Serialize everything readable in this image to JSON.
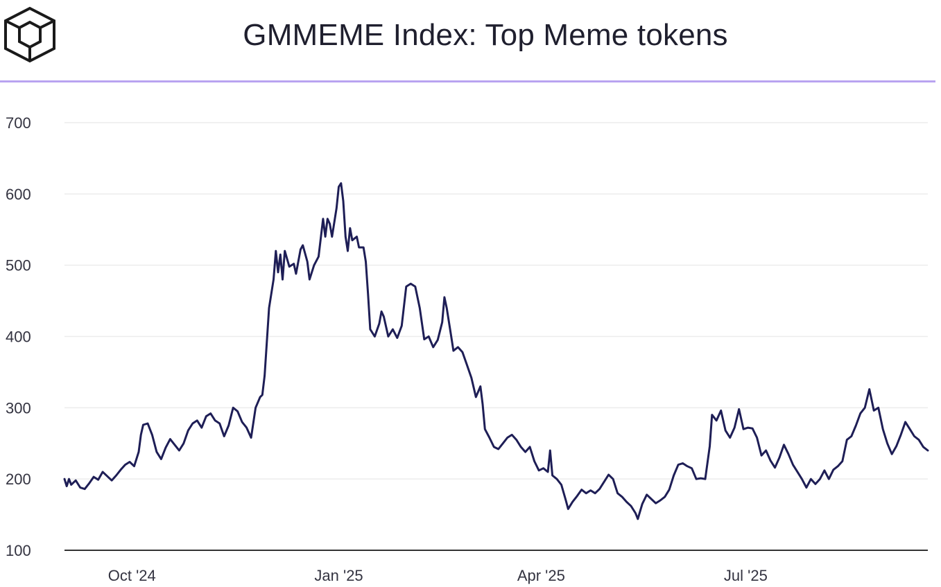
{
  "header": {
    "title": "GMMEME Index: Top Meme tokens",
    "logo_icon": "cube-logo-icon"
  },
  "colors": {
    "line": "#1e1e56",
    "grid": "#ececec",
    "axis": "#333333",
    "divider": "#b9a3f0",
    "text": "#1f1f2e"
  },
  "chart_data": {
    "type": "line",
    "title": "GMMEME Index: Top Meme tokens",
    "xlabel": "",
    "ylabel": "",
    "ylim": [
      100,
      700
    ],
    "yticks": [
      100,
      200,
      300,
      400,
      500,
      600,
      700
    ],
    "xlim": [
      "2024-09-01",
      "2025-09-20"
    ],
    "xticks": [
      {
        "label": "Oct '24",
        "date": "2024-10-01"
      },
      {
        "label": "Jan '25",
        "date": "2025-01-01"
      },
      {
        "label": "Apr '25",
        "date": "2025-04-01"
      },
      {
        "label": "Jul '25",
        "date": "2025-07-01"
      }
    ],
    "grid": true,
    "series": [
      {
        "points": [
          [
            "2024-09-01",
            200
          ],
          [
            "2024-09-02",
            190
          ],
          [
            "2024-09-03",
            200
          ],
          [
            "2024-09-04",
            192
          ],
          [
            "2024-09-06",
            198
          ],
          [
            "2024-09-08",
            188
          ],
          [
            "2024-09-10",
            186
          ],
          [
            "2024-09-12",
            194
          ],
          [
            "2024-09-14",
            203
          ],
          [
            "2024-09-16",
            199
          ],
          [
            "2024-09-18",
            210
          ],
          [
            "2024-09-20",
            204
          ],
          [
            "2024-09-22",
            198
          ],
          [
            "2024-09-24",
            205
          ],
          [
            "2024-09-26",
            213
          ],
          [
            "2024-09-28",
            220
          ],
          [
            "2024-09-30",
            224
          ],
          [
            "2024-10-02",
            218
          ],
          [
            "2024-10-04",
            238
          ],
          [
            "2024-10-05",
            262
          ],
          [
            "2024-10-06",
            276
          ],
          [
            "2024-10-08",
            278
          ],
          [
            "2024-10-10",
            262
          ],
          [
            "2024-10-12",
            238
          ],
          [
            "2024-10-14",
            228
          ],
          [
            "2024-10-16",
            244
          ],
          [
            "2024-10-18",
            256
          ],
          [
            "2024-10-20",
            248
          ],
          [
            "2024-10-22",
            240
          ],
          [
            "2024-10-24",
            250
          ],
          [
            "2024-10-26",
            268
          ],
          [
            "2024-10-28",
            278
          ],
          [
            "2024-10-30",
            282
          ],
          [
            "2024-11-01",
            272
          ],
          [
            "2024-11-03",
            288
          ],
          [
            "2024-11-05",
            292
          ],
          [
            "2024-11-07",
            282
          ],
          [
            "2024-11-09",
            278
          ],
          [
            "2024-11-11",
            260
          ],
          [
            "2024-11-13",
            275
          ],
          [
            "2024-11-15",
            300
          ],
          [
            "2024-11-17",
            295
          ],
          [
            "2024-11-19",
            280
          ],
          [
            "2024-11-21",
            272
          ],
          [
            "2024-11-23",
            258
          ],
          [
            "2024-11-25",
            300
          ],
          [
            "2024-11-27",
            315
          ],
          [
            "2024-11-28",
            318
          ],
          [
            "2024-11-29",
            345
          ],
          [
            "2024-12-01",
            440
          ],
          [
            "2024-12-03",
            480
          ],
          [
            "2024-12-04",
            520
          ],
          [
            "2024-12-05",
            490
          ],
          [
            "2024-12-06",
            515
          ],
          [
            "2024-12-07",
            480
          ],
          [
            "2024-12-08",
            520
          ],
          [
            "2024-12-10",
            498
          ],
          [
            "2024-12-12",
            502
          ],
          [
            "2024-12-13",
            488
          ],
          [
            "2024-12-15",
            522
          ],
          [
            "2024-12-16",
            528
          ],
          [
            "2024-12-18",
            505
          ],
          [
            "2024-12-19",
            480
          ],
          [
            "2024-12-21",
            500
          ],
          [
            "2024-12-23",
            512
          ],
          [
            "2024-12-25",
            565
          ],
          [
            "2024-12-26",
            540
          ],
          [
            "2024-12-27",
            565
          ],
          [
            "2024-12-28",
            558
          ],
          [
            "2024-12-29",
            540
          ],
          [
            "2024-12-31",
            580
          ],
          [
            "2025-01-01",
            610
          ],
          [
            "2025-01-02",
            615
          ],
          [
            "2025-01-03",
            590
          ],
          [
            "2025-01-04",
            540
          ],
          [
            "2025-01-05",
            520
          ],
          [
            "2025-01-06",
            552
          ],
          [
            "2025-01-07",
            535
          ],
          [
            "2025-01-09",
            540
          ],
          [
            "2025-01-10",
            525
          ],
          [
            "2025-01-12",
            525
          ],
          [
            "2025-01-13",
            505
          ],
          [
            "2025-01-14",
            460
          ],
          [
            "2025-01-15",
            410
          ],
          [
            "2025-01-17",
            400
          ],
          [
            "2025-01-19",
            418
          ],
          [
            "2025-01-20",
            435
          ],
          [
            "2025-01-21",
            428
          ],
          [
            "2025-01-23",
            400
          ],
          [
            "2025-01-25",
            410
          ],
          [
            "2025-01-27",
            398
          ],
          [
            "2025-01-29",
            415
          ],
          [
            "2025-01-31",
            470
          ],
          [
            "2025-02-02",
            474
          ],
          [
            "2025-02-04",
            470
          ],
          [
            "2025-02-06",
            440
          ],
          [
            "2025-02-08",
            396
          ],
          [
            "2025-02-10",
            400
          ],
          [
            "2025-02-12",
            385
          ],
          [
            "2025-02-14",
            395
          ],
          [
            "2025-02-16",
            420
          ],
          [
            "2025-02-17",
            455
          ],
          [
            "2025-02-18",
            440
          ],
          [
            "2025-02-20",
            400
          ],
          [
            "2025-02-21",
            380
          ],
          [
            "2025-02-23",
            385
          ],
          [
            "2025-02-25",
            378
          ],
          [
            "2025-02-27",
            360
          ],
          [
            "2025-03-01",
            342
          ],
          [
            "2025-03-03",
            315
          ],
          [
            "2025-03-05",
            330
          ],
          [
            "2025-03-06",
            305
          ],
          [
            "2025-03-07",
            270
          ],
          [
            "2025-03-09",
            258
          ],
          [
            "2025-03-11",
            245
          ],
          [
            "2025-03-13",
            242
          ],
          [
            "2025-03-15",
            250
          ],
          [
            "2025-03-17",
            258
          ],
          [
            "2025-03-19",
            262
          ],
          [
            "2025-03-21",
            255
          ],
          [
            "2025-03-23",
            245
          ],
          [
            "2025-03-25",
            238
          ],
          [
            "2025-03-27",
            245
          ],
          [
            "2025-03-29",
            225
          ],
          [
            "2025-03-31",
            212
          ],
          [
            "2025-04-02",
            215
          ],
          [
            "2025-04-04",
            210
          ],
          [
            "2025-04-05",
            240
          ],
          [
            "2025-04-06",
            205
          ],
          [
            "2025-04-08",
            200
          ],
          [
            "2025-04-10",
            192
          ],
          [
            "2025-04-12",
            170
          ],
          [
            "2025-04-13",
            158
          ],
          [
            "2025-04-15",
            168
          ],
          [
            "2025-04-17",
            176
          ],
          [
            "2025-04-19",
            185
          ],
          [
            "2025-04-21",
            180
          ],
          [
            "2025-04-23",
            184
          ],
          [
            "2025-04-25",
            180
          ],
          [
            "2025-04-27",
            186
          ],
          [
            "2025-04-29",
            196
          ],
          [
            "2025-05-01",
            206
          ],
          [
            "2025-05-03",
            200
          ],
          [
            "2025-05-05",
            180
          ],
          [
            "2025-05-07",
            175
          ],
          [
            "2025-05-09",
            168
          ],
          [
            "2025-05-11",
            162
          ],
          [
            "2025-05-13",
            152
          ],
          [
            "2025-05-14",
            144
          ],
          [
            "2025-05-16",
            165
          ],
          [
            "2025-05-18",
            178
          ],
          [
            "2025-05-20",
            172
          ],
          [
            "2025-05-22",
            166
          ],
          [
            "2025-05-24",
            170
          ],
          [
            "2025-05-26",
            175
          ],
          [
            "2025-05-28",
            185
          ],
          [
            "2025-05-30",
            205
          ],
          [
            "2025-06-01",
            220
          ],
          [
            "2025-06-03",
            222
          ],
          [
            "2025-06-05",
            218
          ],
          [
            "2025-06-07",
            215
          ],
          [
            "2025-06-09",
            200
          ],
          [
            "2025-06-11",
            201
          ],
          [
            "2025-06-13",
            200
          ],
          [
            "2025-06-15",
            246
          ],
          [
            "2025-06-16",
            290
          ],
          [
            "2025-06-18",
            282
          ],
          [
            "2025-06-20",
            296
          ],
          [
            "2025-06-22",
            268
          ],
          [
            "2025-06-24",
            258
          ],
          [
            "2025-06-26",
            272
          ],
          [
            "2025-06-28",
            298
          ],
          [
            "2025-06-30",
            270
          ],
          [
            "2025-07-02",
            272
          ],
          [
            "2025-07-04",
            271
          ],
          [
            "2025-07-06",
            258
          ],
          [
            "2025-07-08",
            233
          ],
          [
            "2025-07-10",
            240
          ],
          [
            "2025-07-12",
            226
          ],
          [
            "2025-07-14",
            216
          ],
          [
            "2025-07-16",
            230
          ],
          [
            "2025-07-18",
            248
          ],
          [
            "2025-07-20",
            235
          ],
          [
            "2025-07-22",
            220
          ],
          [
            "2025-07-24",
            210
          ],
          [
            "2025-07-26",
            200
          ],
          [
            "2025-07-28",
            188
          ],
          [
            "2025-07-30",
            200
          ],
          [
            "2025-08-01",
            193
          ],
          [
            "2025-08-03",
            200
          ],
          [
            "2025-08-05",
            212
          ],
          [
            "2025-08-07",
            200
          ],
          [
            "2025-08-09",
            213
          ],
          [
            "2025-08-11",
            218
          ],
          [
            "2025-08-13",
            225
          ],
          [
            "2025-08-15",
            255
          ],
          [
            "2025-08-17",
            260
          ],
          [
            "2025-08-19",
            275
          ],
          [
            "2025-08-21",
            292
          ],
          [
            "2025-08-23",
            300
          ],
          [
            "2025-08-25",
            326
          ],
          [
            "2025-08-27",
            296
          ],
          [
            "2025-08-29",
            300
          ],
          [
            "2025-08-31",
            270
          ],
          [
            "2025-09-02",
            250
          ],
          [
            "2025-09-04",
            235
          ],
          [
            "2025-09-06",
            246
          ],
          [
            "2025-09-08",
            262
          ],
          [
            "2025-09-10",
            280
          ],
          [
            "2025-09-12",
            270
          ],
          [
            "2025-09-14",
            260
          ],
          [
            "2025-09-16",
            255
          ],
          [
            "2025-09-18",
            245
          ],
          [
            "2025-09-20",
            240
          ]
        ]
      }
    ]
  }
}
